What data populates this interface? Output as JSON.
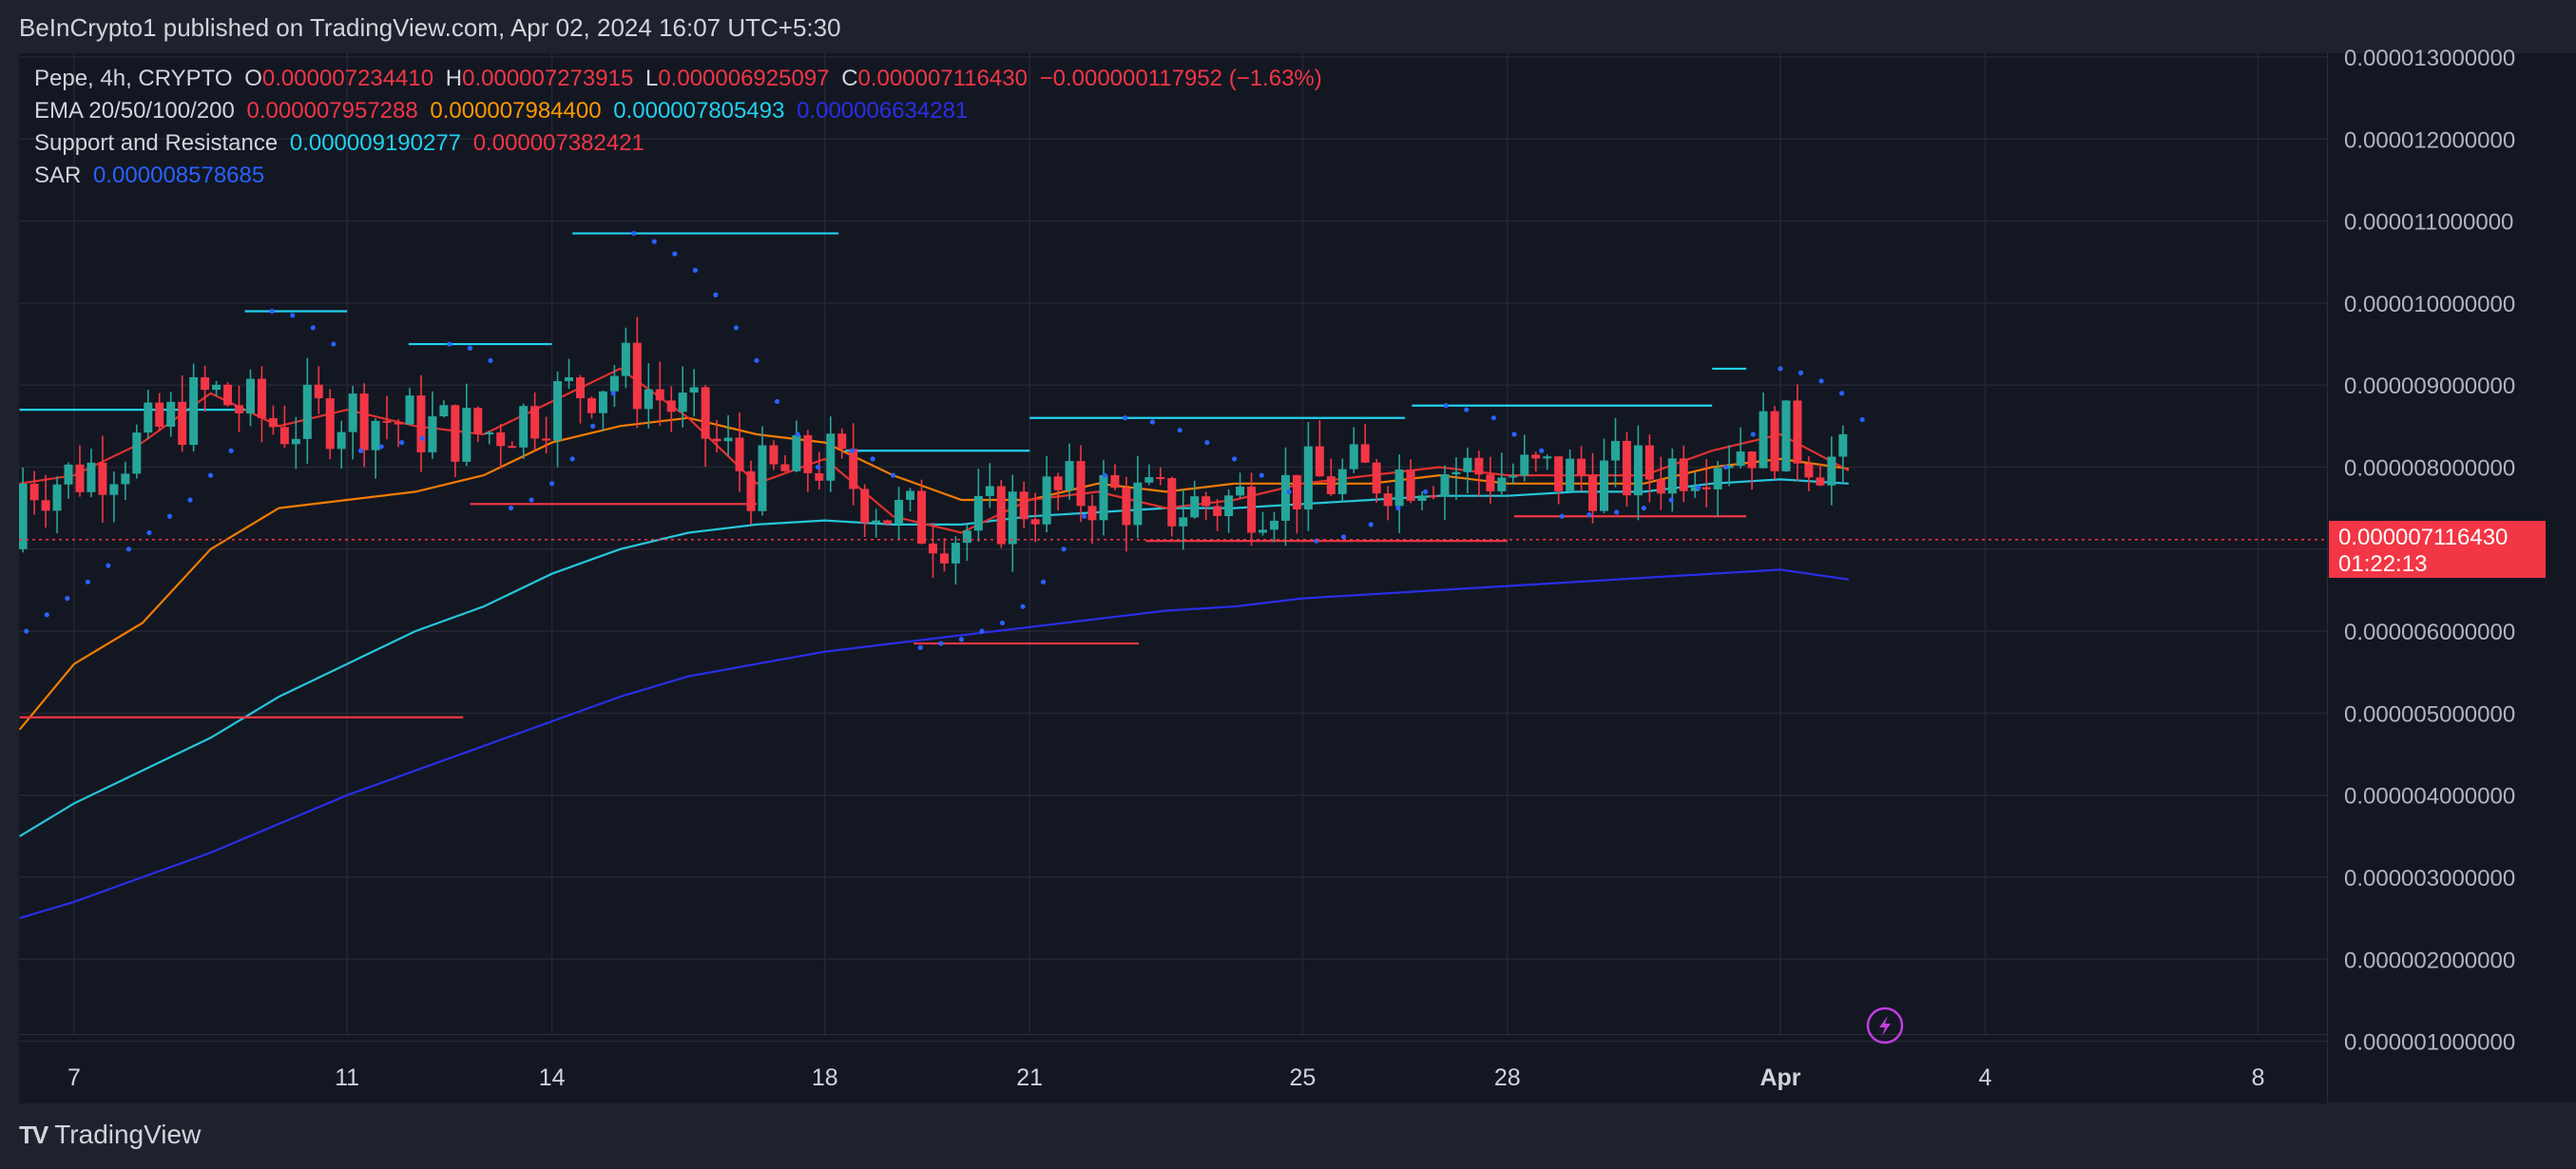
{
  "header": {
    "publisher_text": "BeInCrypto1 published on TradingView.com, Apr 02, 2024 16:07 UTC+5:30"
  },
  "legend": {
    "symbol": "Pepe, 4h, CRYPTO",
    "o_label": "O",
    "o_value": "0.000007234410",
    "h_label": "H",
    "h_value": "0.000007273915",
    "l_label": "L",
    "l_value": "0.000006925097",
    "c_label": "C",
    "c_value": "0.000007116430",
    "change": "−0.000000117952 (−1.63%)",
    "ema_label": "EMA 20/50/100/200",
    "ema20": "0.000007957288",
    "ema50": "0.000007984400",
    "ema100": "0.000007805493",
    "ema200": "0.000006634281",
    "sr_label": "Support and Resistance",
    "sr_resistance": "0.000009190277",
    "sr_support": "0.000007382421",
    "sar_label": "SAR",
    "sar_value": "0.000008578685"
  },
  "price_tag": {
    "price": "0.000007116430",
    "countdown": "01:22:13"
  },
  "branding": {
    "name": "TradingView",
    "logo_text": "TV"
  },
  "colors": {
    "up": "#26a69a",
    "down": "#f23645",
    "ema20": "#e0312f",
    "ema50": "#f57c00",
    "ema100": "#26c6da",
    "ema200": "#2a2ee6",
    "resistance": "#22d1ee",
    "support": "#f23645",
    "sar": "#2962ff",
    "flash_icon": "#c03de0"
  },
  "chart_data": {
    "type": "line",
    "title": "",
    "xlabel": "",
    "ylabel": "",
    "ylim": [
      1e-06,
      1.3e-05
    ],
    "yticks": [
      "0.000013000000",
      "0.000012000000",
      "0.000011000000",
      "0.000010000000",
      "0.000009000000",
      "0.000008000000",
      "0.000007000000",
      "0.000006000000",
      "0.000005000000",
      "0.000004000000",
      "0.000003000000",
      "0.000002000000",
      "0.000001000000"
    ],
    "ytick_values": [
      13,
      12,
      11,
      10,
      9,
      8,
      7,
      6,
      5,
      4,
      3,
      2,
      1
    ],
    "y_unit_scale": 1e-06,
    "x_dates": [
      "Mar 7",
      "Mar 11",
      "Mar 14",
      "Mar 18",
      "Mar 21",
      "Mar 25",
      "Mar 28",
      "Apr 1",
      "Apr 4",
      "Apr 8"
    ],
    "xticks": [
      {
        "label": "7",
        "day": 7
      },
      {
        "label": "11",
        "day": 11
      },
      {
        "label": "14",
        "day": 14
      },
      {
        "label": "18",
        "day": 18
      },
      {
        "label": "21",
        "day": 21
      },
      {
        "label": "25",
        "day": 25
      },
      {
        "label": "28",
        "day": 28
      },
      {
        "label": "Apr",
        "day": 32
      },
      {
        "label": "4",
        "day": 35
      },
      {
        "label": "8",
        "day": 39
      }
    ],
    "x_range_days": [
      6.2,
      40
    ],
    "last_price": 7.11643,
    "series": [
      {
        "name": "EMA 20",
        "points": [
          [
            6.2,
            7.8
          ],
          [
            7,
            7.9
          ],
          [
            8,
            8.3
          ],
          [
            9,
            8.9
          ],
          [
            10,
            8.5
          ],
          [
            11,
            8.7
          ],
          [
            12,
            8.5
          ],
          [
            13,
            8.4
          ],
          [
            14,
            8.8
          ],
          [
            15,
            9.2
          ],
          [
            16,
            8.6
          ],
          [
            17,
            7.8
          ],
          [
            18,
            8.1
          ],
          [
            19,
            7.4
          ],
          [
            20,
            7.2
          ],
          [
            21,
            7.6
          ],
          [
            22,
            7.7
          ],
          [
            23,
            7.5
          ],
          [
            24,
            7.6
          ],
          [
            25,
            7.8
          ],
          [
            26,
            7.9
          ],
          [
            27,
            8.0
          ],
          [
            28,
            7.9
          ],
          [
            29,
            7.9
          ],
          [
            30,
            7.9
          ],
          [
            31,
            8.2
          ],
          [
            32,
            8.4
          ],
          [
            33,
            7.96
          ]
        ]
      },
      {
        "name": "EMA 50",
        "points": [
          [
            6.2,
            4.8
          ],
          [
            7,
            5.6
          ],
          [
            8,
            6.1
          ],
          [
            9,
            7.0
          ],
          [
            10,
            7.5
          ],
          [
            11,
            7.6
          ],
          [
            12,
            7.7
          ],
          [
            13,
            7.9
          ],
          [
            14,
            8.3
          ],
          [
            15,
            8.5
          ],
          [
            16,
            8.6
          ],
          [
            17,
            8.4
          ],
          [
            18,
            8.3
          ],
          [
            19,
            7.9
          ],
          [
            20,
            7.6
          ],
          [
            21,
            7.6
          ],
          [
            22,
            7.8
          ],
          [
            23,
            7.7
          ],
          [
            24,
            7.8
          ],
          [
            25,
            7.8
          ],
          [
            26,
            7.8
          ],
          [
            27,
            7.9
          ],
          [
            28,
            7.8
          ],
          [
            29,
            7.8
          ],
          [
            30,
            7.8
          ],
          [
            31,
            8.0
          ],
          [
            32,
            8.1
          ],
          [
            33,
            7.98
          ]
        ]
      },
      {
        "name": "EMA 100",
        "points": [
          [
            6.2,
            3.5
          ],
          [
            7,
            3.9
          ],
          [
            8,
            4.3
          ],
          [
            9,
            4.7
          ],
          [
            10,
            5.2
          ],
          [
            11,
            5.6
          ],
          [
            12,
            6.0
          ],
          [
            13,
            6.3
          ],
          [
            14,
            6.7
          ],
          [
            15,
            7.0
          ],
          [
            16,
            7.2
          ],
          [
            17,
            7.3
          ],
          [
            18,
            7.35
          ],
          [
            19,
            7.3
          ],
          [
            20,
            7.3
          ],
          [
            21,
            7.4
          ],
          [
            22,
            7.45
          ],
          [
            23,
            7.5
          ],
          [
            24,
            7.5
          ],
          [
            25,
            7.55
          ],
          [
            26,
            7.6
          ],
          [
            27,
            7.65
          ],
          [
            28,
            7.65
          ],
          [
            29,
            7.7
          ],
          [
            30,
            7.7
          ],
          [
            31,
            7.8
          ],
          [
            32,
            7.85
          ],
          [
            33,
            7.8
          ]
        ]
      },
      {
        "name": "EMA 200",
        "points": [
          [
            6.2,
            2.5
          ],
          [
            7,
            2.7
          ],
          [
            8,
            3.0
          ],
          [
            9,
            3.3
          ],
          [
            10,
            3.65
          ],
          [
            11,
            4.0
          ],
          [
            12,
            4.3
          ],
          [
            13,
            4.6
          ],
          [
            14,
            4.9
          ],
          [
            15,
            5.2
          ],
          [
            16,
            5.45
          ],
          [
            17,
            5.6
          ],
          [
            18,
            5.75
          ],
          [
            19,
            5.85
          ],
          [
            20,
            5.95
          ],
          [
            21,
            6.05
          ],
          [
            22,
            6.15
          ],
          [
            23,
            6.25
          ],
          [
            24,
            6.3
          ],
          [
            25,
            6.4
          ],
          [
            26,
            6.45
          ],
          [
            27,
            6.5
          ],
          [
            28,
            6.55
          ],
          [
            29,
            6.6
          ],
          [
            30,
            6.65
          ],
          [
            31,
            6.7
          ],
          [
            32,
            6.75
          ],
          [
            33,
            6.63
          ]
        ]
      }
    ],
    "resistance_levels": [
      {
        "from": 6.2,
        "to": 9.5,
        "y": 8.7
      },
      {
        "from": 9.5,
        "to": 11.0,
        "y": 9.9
      },
      {
        "from": 11.9,
        "to": 14.0,
        "y": 9.5
      },
      {
        "from": 14.3,
        "to": 18.2,
        "y": 10.85
      },
      {
        "from": 18.3,
        "to": 21.0,
        "y": 8.2
      },
      {
        "from": 21.0,
        "to": 26.5,
        "y": 8.6
      },
      {
        "from": 26.6,
        "to": 31.0,
        "y": 8.75
      },
      {
        "from": 31.0,
        "to": 31.5,
        "y": 9.2
      }
    ],
    "support_levels": [
      {
        "from": 6.2,
        "to": 12.7,
        "y": 4.95
      },
      {
        "from": 12.8,
        "to": 17.0,
        "y": 7.55
      },
      {
        "from": 19.3,
        "to": 22.6,
        "y": 5.85
      },
      {
        "from": 22.7,
        "to": 28.0,
        "y": 7.1
      },
      {
        "from": 28.1,
        "to": 31.5,
        "y": 7.4
      }
    ],
    "sar_points": [
      [
        6.3,
        6.0
      ],
      [
        6.6,
        6.2
      ],
      [
        6.9,
        6.4
      ],
      [
        7.2,
        6.6
      ],
      [
        7.5,
        6.8
      ],
      [
        7.8,
        7.0
      ],
      [
        8.1,
        7.2
      ],
      [
        8.4,
        7.4
      ],
      [
        8.7,
        7.6
      ],
      [
        9.0,
        7.9
      ],
      [
        9.3,
        8.2
      ],
      [
        9.9,
        9.9
      ],
      [
        10.2,
        9.85
      ],
      [
        10.5,
        9.7
      ],
      [
        10.8,
        9.5
      ],
      [
        11.2,
        8.2
      ],
      [
        11.5,
        8.25
      ],
      [
        11.8,
        8.3
      ],
      [
        12.1,
        8.35
      ],
      [
        12.5,
        9.5
      ],
      [
        12.8,
        9.45
      ],
      [
        13.1,
        9.3
      ],
      [
        13.4,
        7.5
      ],
      [
        13.7,
        7.6
      ],
      [
        14.0,
        7.8
      ],
      [
        14.3,
        8.1
      ],
      [
        14.6,
        8.5
      ],
      [
        14.9,
        8.9
      ],
      [
        15.2,
        10.85
      ],
      [
        15.5,
        10.75
      ],
      [
        15.8,
        10.6
      ],
      [
        16.1,
        10.4
      ],
      [
        16.4,
        10.1
      ],
      [
        16.7,
        9.7
      ],
      [
        17.0,
        9.3
      ],
      [
        17.3,
        8.8
      ],
      [
        17.6,
        8.4
      ],
      [
        17.9,
        8.0
      ],
      [
        18.4,
        8.2
      ],
      [
        18.7,
        8.1
      ],
      [
        19.0,
        7.9
      ],
      [
        19.4,
        5.8
      ],
      [
        19.7,
        5.85
      ],
      [
        20.0,
        5.9
      ],
      [
        20.3,
        6.0
      ],
      [
        20.6,
        6.1
      ],
      [
        20.9,
        6.3
      ],
      [
        21.2,
        6.6
      ],
      [
        21.5,
        7.0
      ],
      [
        21.8,
        7.4
      ],
      [
        22.1,
        7.9
      ],
      [
        22.4,
        8.6
      ],
      [
        22.8,
        8.55
      ],
      [
        23.2,
        8.45
      ],
      [
        23.6,
        8.3
      ],
      [
        24.0,
        8.1
      ],
      [
        24.4,
        7.9
      ],
      [
        24.8,
        7.7
      ],
      [
        25.2,
        7.1
      ],
      [
        25.6,
        7.15
      ],
      [
        26.0,
        7.3
      ],
      [
        26.4,
        7.5
      ],
      [
        26.8,
        7.7
      ],
      [
        27.1,
        8.75
      ],
      [
        27.4,
        8.7
      ],
      [
        27.8,
        8.6
      ],
      [
        28.1,
        8.4
      ],
      [
        28.5,
        8.2
      ],
      [
        28.8,
        7.4
      ],
      [
        29.2,
        7.42
      ],
      [
        29.6,
        7.45
      ],
      [
        30.0,
        7.5
      ],
      [
        30.4,
        7.6
      ],
      [
        30.8,
        7.75
      ],
      [
        31.2,
        8.0
      ],
      [
        31.6,
        8.4
      ],
      [
        32.0,
        9.2
      ],
      [
        32.3,
        9.15
      ],
      [
        32.6,
        9.05
      ],
      [
        32.9,
        8.9
      ],
      [
        33.2,
        8.58
      ]
    ]
  }
}
